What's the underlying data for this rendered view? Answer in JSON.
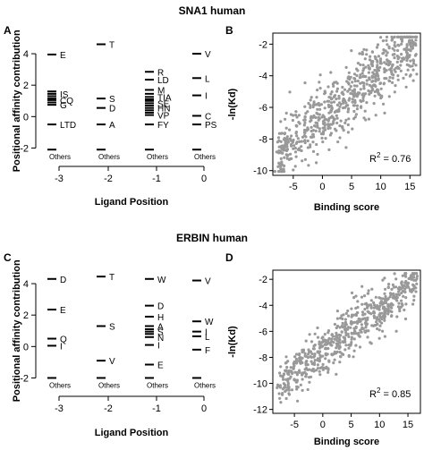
{
  "figure": {
    "section_titles": [
      "SNA1 human",
      "ERBIN human"
    ],
    "panel_labels": [
      "A",
      "B",
      "C",
      "D"
    ]
  },
  "chart_data": [
    {
      "panel": "A",
      "type": "scatter",
      "title": "SNA1 human",
      "xlabel": "Ligand Position",
      "ylabel": "Positional affinity contribution",
      "x_ticks": [
        "-3",
        "-2",
        "-1",
        "0"
      ],
      "y_ticks": [
        4,
        2,
        0,
        -2
      ],
      "ylim": [
        -2.6,
        4.8
      ],
      "columns": [
        {
          "position": "-3",
          "labeled": [
            {
              "label": "E",
              "value": 3.95
            },
            {
              "label": "IS",
              "value": 1.45
            },
            {
              "label": "CQ",
              "value": 1.05
            },
            {
              "label": "G",
              "value": 0.75
            },
            {
              "label": "LTD",
              "value": -0.5
            },
            {
              "label": "Others",
              "value": -2.1
            }
          ],
          "unlabeled": [
            1.6,
            1.3,
            1.15,
            0.9
          ]
        },
        {
          "position": "-2",
          "labeled": [
            {
              "label": "T",
              "value": 4.6
            },
            {
              "label": "S",
              "value": 1.15
            },
            {
              "label": "D",
              "value": 0.55
            },
            {
              "label": "A",
              "value": -0.5
            },
            {
              "label": "Others",
              "value": -2.1
            }
          ],
          "unlabeled": []
        },
        {
          "position": "-1",
          "labeled": [
            {
              "label": "R",
              "value": 2.85
            },
            {
              "label": "LD",
              "value": 2.35
            },
            {
              "label": "M",
              "value": 1.7
            },
            {
              "label": "TIA",
              "value": 1.25
            },
            {
              "label": "SE",
              "value": 0.85
            },
            {
              "label": "HN",
              "value": 0.55
            },
            {
              "label": "VP",
              "value": 0.1
            },
            {
              "label": "FY",
              "value": -0.5
            },
            {
              "label": "Others",
              "value": -2.1
            }
          ],
          "unlabeled": [
            1.45,
            1.1,
            1.0,
            0.7,
            0.4,
            0.25
          ]
        },
        {
          "position": "0",
          "labeled": [
            {
              "label": "V",
              "value": 4.0
            },
            {
              "label": "L",
              "value": 2.45
            },
            {
              "label": "I",
              "value": 1.35
            },
            {
              "label": "C",
              "value": 0.05
            },
            {
              "label": "PS",
              "value": -0.5
            },
            {
              "label": "Others",
              "value": -2.1
            }
          ],
          "unlabeled": []
        }
      ]
    },
    {
      "panel": "B",
      "type": "scatter",
      "xlabel": "Binding score",
      "ylabel": "-ln(Kd)",
      "xlim": [
        -8.5,
        16.8
      ],
      "ylim": [
        -10.3,
        -1.3
      ],
      "x_ticks": [
        -5,
        0,
        5,
        10,
        15
      ],
      "y_ticks": [
        -2,
        -4,
        -6,
        -8,
        -10
      ],
      "annotation": {
        "text": "R",
        "sup": "2",
        "value": "= 0.76"
      },
      "point_color": "#999999",
      "point_cloud": {
        "n": 700,
        "x_range": [
          -8,
          16
        ],
        "slope": 0.3,
        "intercept": -6.6,
        "noise": 1.05,
        "seed": 11
      }
    },
    {
      "panel": "C",
      "type": "scatter",
      "title": "ERBIN human",
      "xlabel": "Ligand Position",
      "ylabel": "Positional affinity contribution",
      "x_ticks": [
        "-3",
        "-2",
        "-1",
        "0"
      ],
      "y_ticks": [
        4,
        2,
        0,
        -2
      ],
      "ylim": [
        -2.6,
        4.8
      ],
      "columns": [
        {
          "position": "-3",
          "labeled": [
            {
              "label": "D",
              "value": 4.3
            },
            {
              "label": "E",
              "value": 2.35
            },
            {
              "label": "Q",
              "value": 0.5
            },
            {
              "label": "I",
              "value": 0.05
            },
            {
              "label": "Others",
              "value": -2.0
            }
          ],
          "unlabeled": []
        },
        {
          "position": "-2",
          "labeled": [
            {
              "label": "T",
              "value": 4.45
            },
            {
              "label": "S",
              "value": 1.3
            },
            {
              "label": "V",
              "value": -0.9
            },
            {
              "label": "Others",
              "value": -2.0
            }
          ],
          "unlabeled": []
        },
        {
          "position": "-1",
          "labeled": [
            {
              "label": "W",
              "value": 4.3
            },
            {
              "label": "D",
              "value": 2.6
            },
            {
              "label": "H",
              "value": 1.9
            },
            {
              "label": "A",
              "value": 1.3
            },
            {
              "label": "S",
              "value": 0.95
            },
            {
              "label": "N",
              "value": 0.6
            },
            {
              "label": "I",
              "value": 0.1
            },
            {
              "label": "E",
              "value": -1.15
            },
            {
              "label": "Others",
              "value": -2.0
            }
          ],
          "unlabeled": [
            1.1,
            0.8
          ]
        },
        {
          "position": "0",
          "labeled": [
            {
              "label": "V",
              "value": 4.2
            },
            {
              "label": "W",
              "value": 1.6
            },
            {
              "label": "I",
              "value": 0.95
            },
            {
              "label": "L",
              "value": 0.65
            },
            {
              "label": "F",
              "value": -0.2
            },
            {
              "label": "Others",
              "value": -2.0
            }
          ],
          "unlabeled": []
        }
      ]
    },
    {
      "panel": "D",
      "type": "scatter",
      "xlabel": "Binding score",
      "ylabel": "-ln(Kd)",
      "xlim": [
        -8.8,
        17.2
      ],
      "ylim": [
        -12.3,
        -1.3
      ],
      "x_ticks": [
        -5,
        0,
        5,
        10,
        15
      ],
      "y_ticks": [
        -2,
        -4,
        -6,
        -8,
        -10,
        -12
      ],
      "annotation": {
        "text": "R",
        "sup": "2",
        "value": "= 0.85"
      },
      "point_color": "#999999",
      "point_cloud": {
        "n": 650,
        "x_range": [
          -8,
          16.5
        ],
        "slope": 0.33,
        "intercept": -7.6,
        "noise": 0.9,
        "seed": 23
      }
    }
  ]
}
